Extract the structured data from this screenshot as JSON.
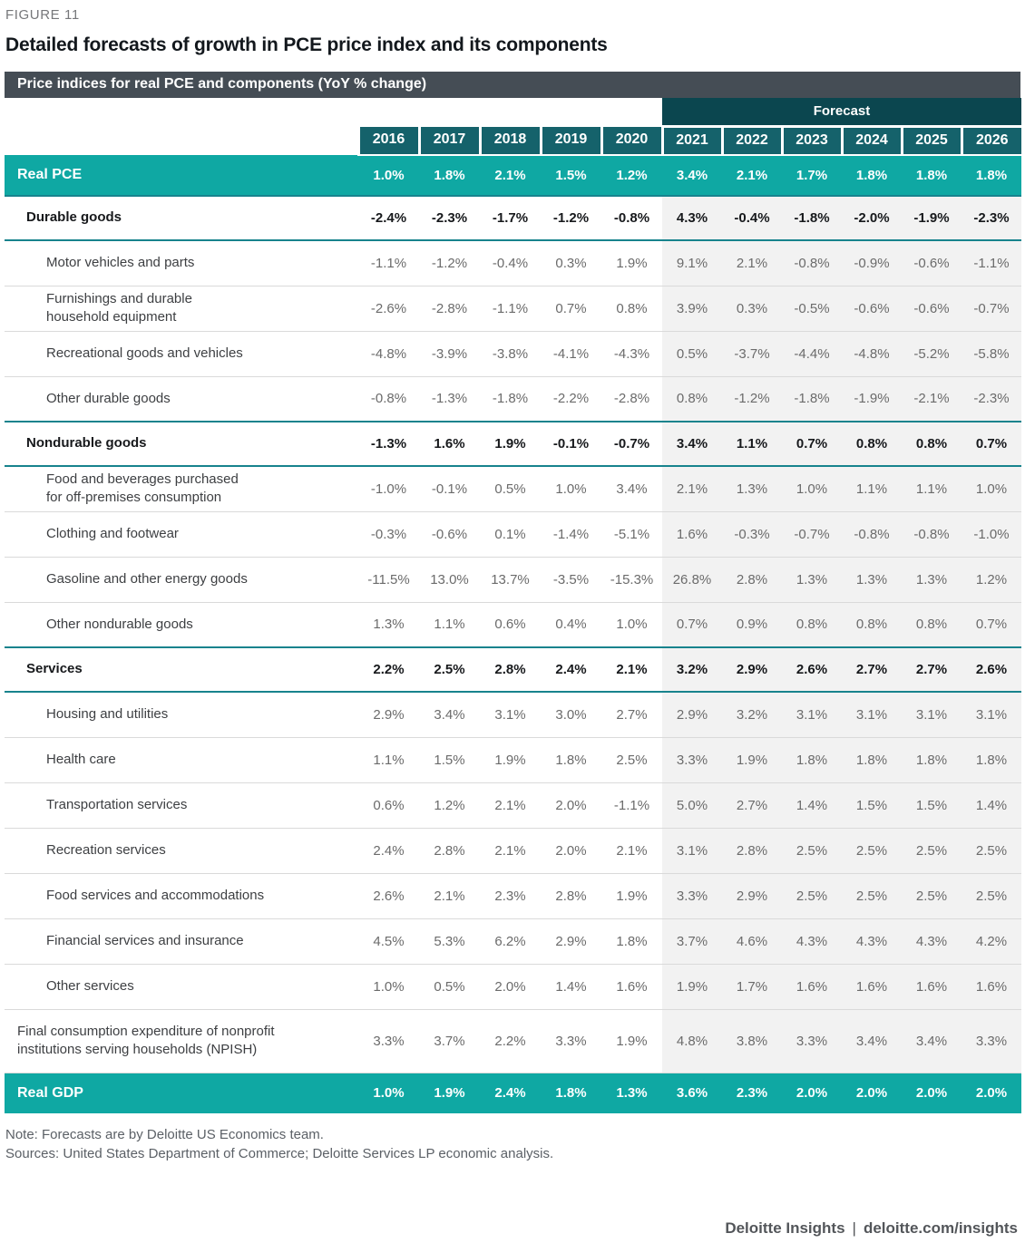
{
  "figure_label": "FIGURE 11",
  "title": "Detailed forecasts of growth in PCE price index and its components",
  "table_caption": "Price indices for real PCE and components (YoY % change)",
  "forecast_label": "Forecast",
  "footer": {
    "note": "Note: Forecasts are by Deloitte US Economics team.",
    "sources": "Sources: United States Department of Commerce; Deloitte Services LP economic analysis.",
    "branding": {
      "left": "Deloitte Insights",
      "separator": "|",
      "url": "deloitte.com/insights"
    }
  },
  "colors": {
    "caption_bar_gray": "#454D55",
    "forecast_band_teal": "#0B464F",
    "year_header_teal": "#15626B",
    "total_row_teal": "#0FA8A3",
    "section_divider_teal": "#17838D",
    "forecast_column_bg": "#F2F2F2"
  },
  "chart_data": {
    "type": "table",
    "title": "Detailed forecasts of growth in PCE price index and its components",
    "subtitle": "Price indices for real PCE and components (YoY % change)",
    "years_actual": [
      "2016",
      "2017",
      "2018",
      "2019",
      "2020"
    ],
    "years_forecast": [
      "2021",
      "2022",
      "2023",
      "2024",
      "2025",
      "2026"
    ],
    "rows": [
      {
        "label": "Real PCE",
        "style": "total",
        "values": [
          "1.0%",
          "1.8%",
          "2.1%",
          "1.5%",
          "1.2%",
          "3.4%",
          "2.1%",
          "1.7%",
          "1.8%",
          "1.8%",
          "1.8%"
        ]
      },
      {
        "label": "Durable goods",
        "style": "section",
        "values": [
          "-2.4%",
          "-2.3%",
          "-1.7%",
          "-1.2%",
          "-0.8%",
          "4.3%",
          "-0.4%",
          "-1.8%",
          "-2.0%",
          "-1.9%",
          "-2.3%"
        ]
      },
      {
        "label": "Motor vehicles and parts",
        "style": "sub",
        "values": [
          "-1.1%",
          "-1.2%",
          "-0.4%",
          "0.3%",
          "1.9%",
          "9.1%",
          "2.1%",
          "-0.8%",
          "-0.9%",
          "-0.6%",
          "-1.1%"
        ]
      },
      {
        "label": "Furnishings and durable\nhousehold equipment",
        "style": "sub",
        "values": [
          "-2.6%",
          "-2.8%",
          "-1.1%",
          "0.7%",
          "0.8%",
          "3.9%",
          "0.3%",
          "-0.5%",
          "-0.6%",
          "-0.6%",
          "-0.7%"
        ]
      },
      {
        "label": "Recreational goods and vehicles",
        "style": "sub",
        "values": [
          "-4.8%",
          "-3.9%",
          "-3.8%",
          "-4.1%",
          "-4.3%",
          "0.5%",
          "-3.7%",
          "-4.4%",
          "-4.8%",
          "-5.2%",
          "-5.8%"
        ]
      },
      {
        "label": "Other durable goods",
        "style": "sub",
        "values": [
          "-0.8%",
          "-1.3%",
          "-1.8%",
          "-2.2%",
          "-2.8%",
          "0.8%",
          "-1.2%",
          "-1.8%",
          "-1.9%",
          "-2.1%",
          "-2.3%"
        ]
      },
      {
        "label": "Nondurable goods",
        "style": "section",
        "values": [
          "-1.3%",
          "1.6%",
          "1.9%",
          "-0.1%",
          "-0.7%",
          "3.4%",
          "1.1%",
          "0.7%",
          "0.8%",
          "0.8%",
          "0.7%"
        ]
      },
      {
        "label": "Food and beverages purchased\nfor off-premises consumption",
        "style": "sub",
        "values": [
          "-1.0%",
          "-0.1%",
          "0.5%",
          "1.0%",
          "3.4%",
          "2.1%",
          "1.3%",
          "1.0%",
          "1.1%",
          "1.1%",
          "1.0%"
        ]
      },
      {
        "label": "Clothing and footwear",
        "style": "sub",
        "values": [
          "-0.3%",
          "-0.6%",
          "0.1%",
          "-1.4%",
          "-5.1%",
          "1.6%",
          "-0.3%",
          "-0.7%",
          "-0.8%",
          "-0.8%",
          "-1.0%"
        ]
      },
      {
        "label": "Gasoline and other energy goods",
        "style": "sub",
        "values": [
          "-11.5%",
          "13.0%",
          "13.7%",
          "-3.5%",
          "-15.3%",
          "26.8%",
          "2.8%",
          "1.3%",
          "1.3%",
          "1.3%",
          "1.2%"
        ]
      },
      {
        "label": "Other nondurable goods",
        "style": "sub",
        "values": [
          "1.3%",
          "1.1%",
          "0.6%",
          "0.4%",
          "1.0%",
          "0.7%",
          "0.9%",
          "0.8%",
          "0.8%",
          "0.8%",
          "0.7%"
        ]
      },
      {
        "label": "Services",
        "style": "section",
        "values": [
          "2.2%",
          "2.5%",
          "2.8%",
          "2.4%",
          "2.1%",
          "3.2%",
          "2.9%",
          "2.6%",
          "2.7%",
          "2.7%",
          "2.6%"
        ]
      },
      {
        "label": "Housing and utilities",
        "style": "sub",
        "values": [
          "2.9%",
          "3.4%",
          "3.1%",
          "3.0%",
          "2.7%",
          "2.9%",
          "3.2%",
          "3.1%",
          "3.1%",
          "3.1%",
          "3.1%"
        ]
      },
      {
        "label": "Health care",
        "style": "sub",
        "values": [
          "1.1%",
          "1.5%",
          "1.9%",
          "1.8%",
          "2.5%",
          "3.3%",
          "1.9%",
          "1.8%",
          "1.8%",
          "1.8%",
          "1.8%"
        ]
      },
      {
        "label": "Transportation services",
        "style": "sub",
        "values": [
          "0.6%",
          "1.2%",
          "2.1%",
          "2.0%",
          "-1.1%",
          "5.0%",
          "2.7%",
          "1.4%",
          "1.5%",
          "1.5%",
          "1.4%"
        ]
      },
      {
        "label": "Recreation services",
        "style": "sub",
        "values": [
          "2.4%",
          "2.8%",
          "2.1%",
          "2.0%",
          "2.1%",
          "3.1%",
          "2.8%",
          "2.5%",
          "2.5%",
          "2.5%",
          "2.5%"
        ]
      },
      {
        "label": "Food services and accommodations",
        "style": "sub",
        "values": [
          "2.6%",
          "2.1%",
          "2.3%",
          "2.8%",
          "1.9%",
          "3.3%",
          "2.9%",
          "2.5%",
          "2.5%",
          "2.5%",
          "2.5%"
        ]
      },
      {
        "label": "Financial services and insurance",
        "style": "sub",
        "values": [
          "4.5%",
          "5.3%",
          "6.2%",
          "2.9%",
          "1.8%",
          "3.7%",
          "4.6%",
          "4.3%",
          "4.3%",
          "4.3%",
          "4.2%"
        ]
      },
      {
        "label": "Other services",
        "style": "sub",
        "values": [
          "1.0%",
          "0.5%",
          "2.0%",
          "1.4%",
          "1.6%",
          "1.9%",
          "1.7%",
          "1.6%",
          "1.6%",
          "1.6%",
          "1.6%"
        ]
      },
      {
        "label": "Final consumption expenditure of nonprofit\ninstitutions serving households (NPISH)",
        "style": "npish",
        "values": [
          "3.3%",
          "3.7%",
          "2.2%",
          "3.3%",
          "1.9%",
          "4.8%",
          "3.8%",
          "3.3%",
          "3.4%",
          "3.4%",
          "3.3%"
        ]
      },
      {
        "label": "Real GDP",
        "style": "total",
        "values": [
          "1.0%",
          "1.9%",
          "2.4%",
          "1.8%",
          "1.3%",
          "3.6%",
          "2.3%",
          "2.0%",
          "2.0%",
          "2.0%",
          "2.0%"
        ]
      }
    ]
  }
}
